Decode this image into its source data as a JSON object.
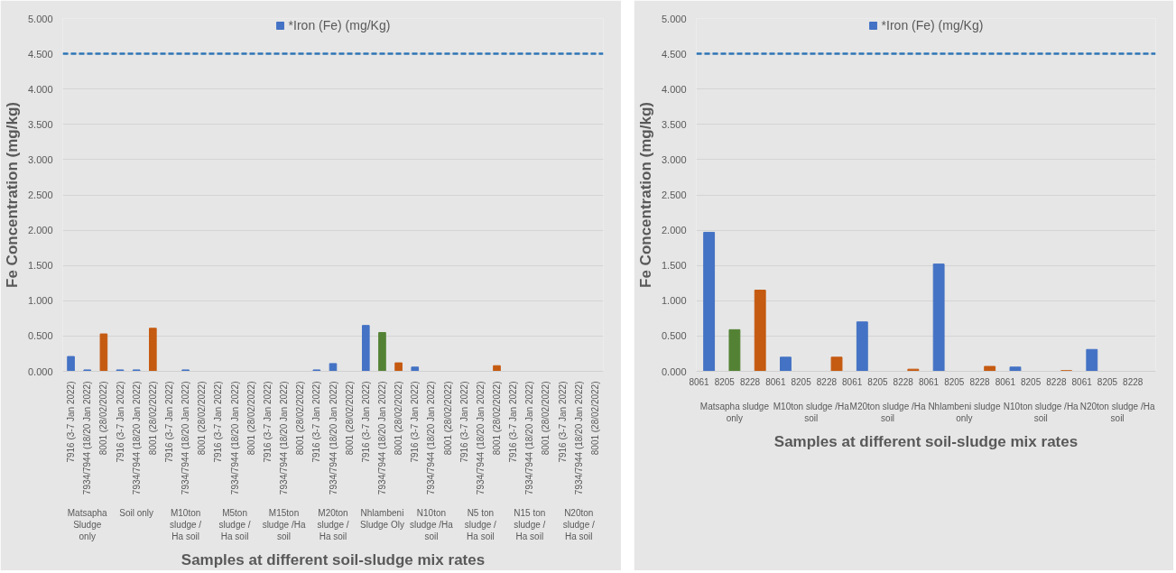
{
  "chart_data": [
    {
      "type": "bar",
      "xlabel": "Samples at different soil-sludge mix rates",
      "ylabel": "Fe Concentration (mg/kg)",
      "categories": [
        "7916 (3-7 Jan 2022)",
        "7934/7944 (18/20 Jan 2022)",
        "8001 (28/02/2022)",
        "7916 (3-7 Jan 2022)",
        "7934/7944 (18/20 Jan 2022)",
        "8001 (28/02/2022)",
        "7916 (3-7 Jan 2022)",
        "7934/7944 (18/20 Jan 2022)",
        "8001 (28/02/2022)",
        "7916 (3-7 Jan 2022)",
        "7934/7944 (18/20 Jan 2022)",
        "8001 (28/02/2022)",
        "7916 (3-7 Jan 2022)",
        "7934/7944 (18/20 Jan 2022)",
        "8001 (28/02/2022)",
        "7916 (3-7 Jan 2022)",
        "7934/7944 (18/20 Jan 2022)",
        "8001 (28/02/2022)",
        "7916 (3-7 Jan 2022)",
        "7934/7944 (18/20 Jan 2022)",
        "8001 (28/02/2022)",
        "7916 (3-7 Jan 2022)",
        "7934/7944 (18/20 Jan 2022)",
        "8001 (28/02/2022)",
        "7916 (3-7 Jan 2022)",
        "7934/7944 (18/20 Jan 2022)",
        "8001 (28/02/2022)",
        "7916 (3-7 Jan 2022)",
        "7934/7944 (18/20 Jan 2022)",
        "8001 (28/02/2022)",
        "7916 (3-7 Jan 2022)",
        "7934/7944 (18/20 Jan 2022)",
        "8001 (28/02/2022)"
      ],
      "annotations": [
        "Matsapha Sludge only",
        "Soil only",
        "M10ton sludge / Ha soil",
        "M5ton sludge / Ha soil",
        "M15ton sludge /Ha soil",
        "M20ton sludge / Ha soil",
        "Nhlambeni Sludge Oly",
        "N10ton sludge /Ha soil",
        "N5 ton sludge / Ha soil",
        "N15 ton sludge / Ha soil",
        "N20ton sludge / Ha soil"
      ],
      "series": [
        {
          "name": "*Iron (Fe) (mg/Kg)",
          "values": [
            0.21,
            0.02,
            0.53,
            0.02,
            0.02,
            0.61,
            null,
            0.02,
            null,
            null,
            null,
            null,
            null,
            null,
            null,
            0.02,
            0.11,
            null,
            0.65,
            0.55,
            0.12,
            0.06,
            null,
            null,
            null,
            null,
            0.08,
            null,
            null,
            null,
            null,
            null,
            null
          ],
          "colors": [
            "#4472c4",
            "#4472c4",
            "#c55a11",
            "#4472c4",
            "#4472c4",
            "#c55a11",
            "#4472c4",
            "#4472c4",
            "#c55a11",
            "#4472c4",
            "#4472c4",
            "#c55a11",
            "#4472c4",
            "#4472c4",
            "#c55a11",
            "#4472c4",
            "#4472c4",
            "#c55a11",
            "#4472c4",
            "#548235",
            "#c55a11",
            "#4472c4",
            "#4472c4",
            "#c55a11",
            "#4472c4",
            "#4472c4",
            "#c55a11",
            "#4472c4",
            "#4472c4",
            "#c55a11",
            "#4472c4",
            "#4472c4",
            "#c55a11"
          ]
        }
      ],
      "ylim": [
        0,
        5
      ],
      "yticks": [
        {
          "value": 0,
          "label": "0.000"
        },
        {
          "value": 0.5,
          "label": "0.500"
        },
        {
          "value": 1,
          "label": "1.000"
        },
        {
          "value": 1.5,
          "label": "1.500"
        },
        {
          "value": 2,
          "label": "2.000"
        },
        {
          "value": 2.5,
          "label": "2.500"
        },
        {
          "value": 3,
          "label": "3.000"
        },
        {
          "value": 3.5,
          "label": "3.500"
        },
        {
          "value": 4,
          "label": "4.000"
        },
        {
          "value": 4.5,
          "label": "4.500"
        },
        {
          "value": 5,
          "label": "5.000"
        }
      ],
      "ref_lines": [
        {
          "axis": "y",
          "value": 4.5,
          "color": "#2e75b6",
          "line_style": "dashed"
        }
      ],
      "grid": "y",
      "legend": "top"
    },
    {
      "type": "bar",
      "xlabel": "Samples at different soil-sludge mix rates",
      "ylabel": "Fe Concentration (mg/kg)",
      "categories": [
        "8061",
        "8205",
        "8228",
        "8061",
        "8205",
        "8228",
        "8061",
        "8205",
        "8228",
        "8061",
        "8205",
        "8228",
        "8061",
        "8205",
        "8228",
        "8061",
        "8205",
        "8228"
      ],
      "annotations": [
        "Matsapha sludge only",
        "M10ton sludge /Ha soil",
        "M20ton sludge /Ha soil",
        "Nhlambeni sludge only",
        "N10ton sludge /Ha soil",
        "N20ton sludge /Ha soil"
      ],
      "series": [
        {
          "name": "*Iron (Fe) (mg/Kg)",
          "values": [
            1.97,
            0.59,
            1.15,
            0.2,
            null,
            0.2,
            0.7,
            null,
            0.03,
            1.52,
            null,
            0.07,
            0.06,
            null,
            0.01,
            0.31,
            null,
            null
          ],
          "colors": [
            "#4472c4",
            "#548235",
            "#c55a11",
            "#4472c4",
            "#548235",
            "#c55a11",
            "#4472c4",
            "#548235",
            "#c55a11",
            "#4472c4",
            "#548235",
            "#c55a11",
            "#4472c4",
            "#548235",
            "#c55a11",
            "#4472c4",
            "#548235",
            "#c55a11"
          ]
        }
      ],
      "ylim": [
        0,
        5
      ],
      "yticks": [
        {
          "value": 0,
          "label": "0.000"
        },
        {
          "value": 0.5,
          "label": "0.500"
        },
        {
          "value": 1,
          "label": "1.000"
        },
        {
          "value": 1.5,
          "label": "1.500"
        },
        {
          "value": 2,
          "label": "2.000"
        },
        {
          "value": 2.5,
          "label": "2.500"
        },
        {
          "value": 3,
          "label": "3.000"
        },
        {
          "value": 3.5,
          "label": "3.500"
        },
        {
          "value": 4,
          "label": "4.000"
        },
        {
          "value": 4.5,
          "label": "4.500"
        },
        {
          "value": 5,
          "label": "5.000"
        }
      ],
      "ref_lines": [
        {
          "axis": "y",
          "value": 4.5,
          "color": "#2e75b6",
          "line_style": "dashed"
        }
      ],
      "grid": "y",
      "legend": "top"
    }
  ]
}
